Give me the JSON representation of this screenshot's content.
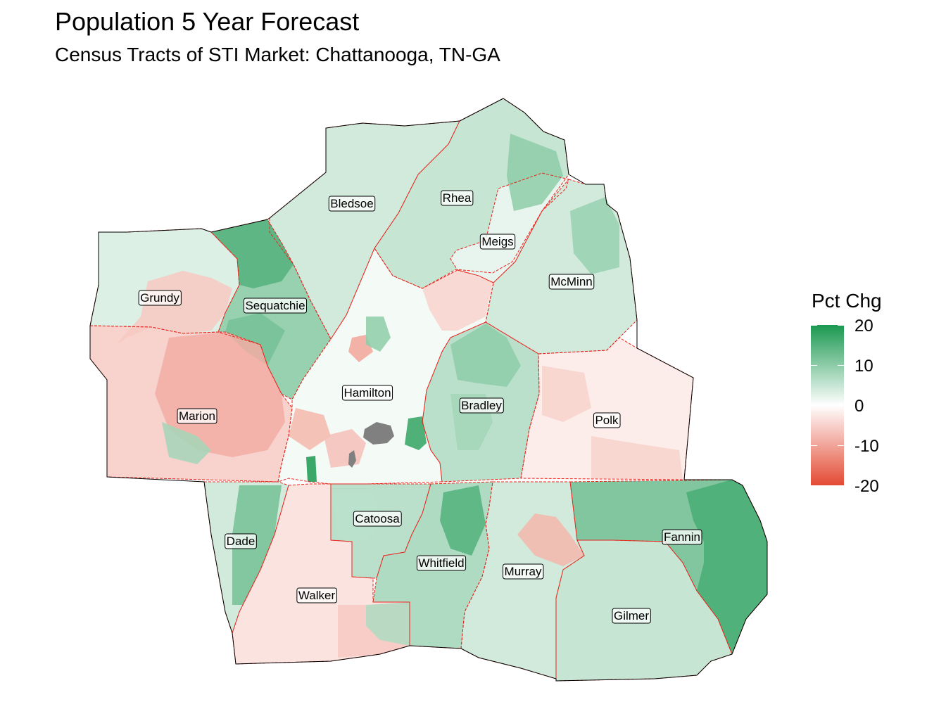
{
  "title": "Population 5 Year Forecast",
  "subtitle": "Census Tracts of STI Market: Chattanooga, TN-GA",
  "legend": {
    "title": "Pct Chg",
    "ticks": [
      "20",
      "10",
      "0",
      "-10",
      "-20"
    ],
    "scale_min": -20,
    "scale_max": 20,
    "high_color": "#1a9850",
    "mid_color": "#ffffff",
    "low_color": "#e34a33",
    "missing_color": "#808080",
    "county_border_color": "#e8241c"
  },
  "counties": [
    {
      "name": "Bledsoe",
      "pct_chg": 4
    },
    {
      "name": "Rhea",
      "pct_chg": 5
    },
    {
      "name": "Meigs",
      "pct_chg": 2
    },
    {
      "name": "McMinn",
      "pct_chg": 4
    },
    {
      "name": "Grundy",
      "pct_chg": 3
    },
    {
      "name": "Sequatchie",
      "pct_chg": 9
    },
    {
      "name": "Marion",
      "pct_chg": -5
    },
    {
      "name": "Hamilton",
      "pct_chg": 1
    },
    {
      "name": "Bradley",
      "pct_chg": 6
    },
    {
      "name": "Polk",
      "pct_chg": -2
    },
    {
      "name": "Dade",
      "pct_chg": 4
    },
    {
      "name": "Catoosa",
      "pct_chg": 6
    },
    {
      "name": "Walker",
      "pct_chg": -3
    },
    {
      "name": "Whitfield",
      "pct_chg": 7
    },
    {
      "name": "Murray",
      "pct_chg": 4
    },
    {
      "name": "Fannin",
      "pct_chg": 11
    },
    {
      "name": "Gilmer",
      "pct_chg": 5
    }
  ]
}
